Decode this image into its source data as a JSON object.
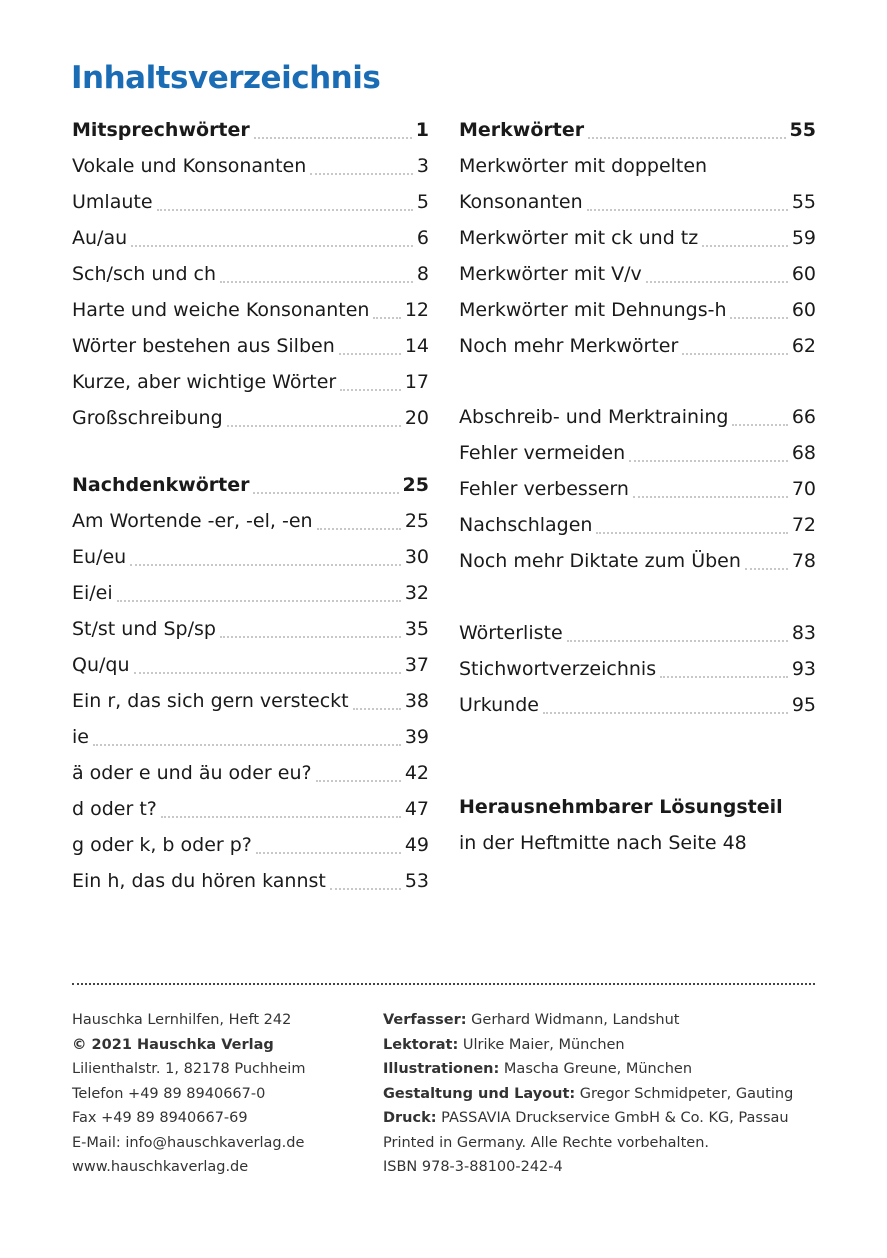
{
  "title": "Inhaltsverzeichnis",
  "left": {
    "groups": [
      {
        "heading": {
          "title": "Mitsprechwörter",
          "page": "1"
        },
        "entries": [
          {
            "title": "Vokale und Konsonanten",
            "page": "3"
          },
          {
            "title": "Umlaute",
            "page": "5"
          },
          {
            "title": "Au/au",
            "page": "6"
          },
          {
            "title": "Sch/sch und ch",
            "page": "8"
          },
          {
            "title": "Harte und weiche Konsonanten",
            "page": "12"
          },
          {
            "title": "Wörter bestehen aus Silben",
            "page": "14"
          },
          {
            "title": "Kurze, aber wichtige Wörter",
            "page": "17"
          },
          {
            "title": "Großschreibung",
            "page": "20"
          }
        ]
      },
      {
        "heading": {
          "title": "Nachdenkwörter",
          "page": "25"
        },
        "entries": [
          {
            "title": "Am Wortende -er, -el, -en",
            "page": "25"
          },
          {
            "title": "Eu/eu",
            "page": "30"
          },
          {
            "title": "Ei/ei",
            "page": "32"
          },
          {
            "title": "St/st und Sp/sp",
            "page": "35"
          },
          {
            "title": "Qu/qu",
            "page": "37"
          },
          {
            "title": "Ein r, das sich gern versteckt",
            "page": "38"
          },
          {
            "title": "ie",
            "page": "39"
          },
          {
            "title": "ä oder e und äu oder eu?",
            "page": "42"
          },
          {
            "title": "d oder t?",
            "page": "47"
          },
          {
            "title": "g oder k, b oder p?",
            "page": "49"
          },
          {
            "title": "Ein h, das du hören kannst",
            "page": "53"
          }
        ]
      }
    ]
  },
  "right": {
    "groups": [
      {
        "heading": {
          "title": "Merkwörter",
          "page": "55"
        },
        "entries": [
          {
            "title": [
              "Merkwörter mit doppelten",
              "Konsonanten"
            ],
            "page": "55"
          },
          {
            "title": "Merkwörter mit ck und tz",
            "page": "59"
          },
          {
            "title": "Merkwörter mit V/v",
            "page": "60"
          },
          {
            "title": "Merkwörter mit Dehnungs-h",
            "page": "60"
          },
          {
            "title": "Noch mehr Merkwörter",
            "page": "62"
          }
        ]
      },
      {
        "entries": [
          {
            "title": "Abschreib- und Merktraining",
            "page": "66"
          },
          {
            "title": "Fehler vermeiden",
            "page": "68"
          },
          {
            "title": "Fehler verbessern",
            "page": "70"
          },
          {
            "title": "Nachschlagen",
            "page": "72"
          },
          {
            "title": "Noch mehr Diktate zum Üben",
            "page": "78"
          }
        ]
      },
      {
        "entries": [
          {
            "title": "Wörterliste",
            "page": "83"
          },
          {
            "title": "Stichwortverzeichnis",
            "page": "93"
          },
          {
            "title": "Urkunde",
            "page": "95"
          }
        ]
      },
      {
        "heading": {
          "title": "Herausnehmbarer Lösungsteil"
        },
        "text": "in der Heftmitte nach Seite 48"
      }
    ]
  },
  "footer": {
    "left": [
      {
        "text": "Hauschka Lernhilfen, Heft 242"
      },
      {
        "text": "© 2021 Hauschka Verlag",
        "bold": true
      },
      {
        "text": "Lilienthalstr. 1, 82178 Puchheim"
      },
      {
        "text": "Telefon +49 89 8940667-0"
      },
      {
        "text": "Fax +49 89 8940667-69"
      },
      {
        "text": "E-Mail: info@hauschkaverlag.de"
      },
      {
        "text": "www.hauschkaverlag.de"
      }
    ],
    "right": [
      {
        "label": "Verfasser:",
        "text": "Gerhard Widmann, Landshut"
      },
      {
        "label": "Lektorat:",
        "text": "Ulrike Maier, München"
      },
      {
        "label": "Illustrationen:",
        "text": "Mascha Greune, München"
      },
      {
        "label": "Gestaltung und Layout:",
        "text": "Gregor Schmidpeter, Gauting"
      },
      {
        "label": "Druck:",
        "text": "PASSAVIA Druckservice GmbH & Co. KG, Passau"
      },
      {
        "text": "Printed in Germany. Alle Rechte vorbehalten."
      },
      {
        "text": "ISBN 978-3-88100-242-4"
      }
    ]
  }
}
